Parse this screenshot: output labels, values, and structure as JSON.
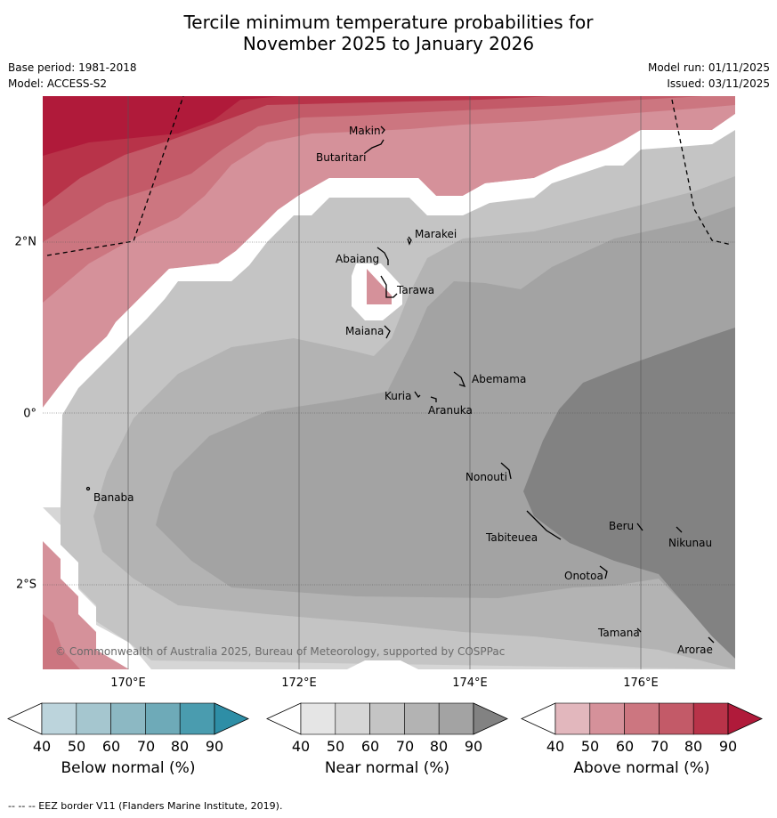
{
  "title": {
    "line1": "Tercile minimum temperature probabilities for",
    "line2": "November 2025 to January 2026"
  },
  "meta": {
    "base_period": "Base period: 1981-2018",
    "model": "Model: ACCESS-S2",
    "model_run": "Model run: 01/11/2025",
    "issued": "Issued: 03/11/2025"
  },
  "map": {
    "longitude_labels": [
      "170°E",
      "172°E",
      "174°E",
      "176°E"
    ],
    "latitude_labels": [
      "2°N",
      "0°",
      "2°S"
    ],
    "places": [
      "Makin",
      "Butaritari",
      "Marakei",
      "Abaiang",
      "Tarawa",
      "Maiana",
      "Abemama",
      "Kuria",
      "Aranuka",
      "Banaba",
      "Nonouti",
      "Tabiteuea",
      "Beru",
      "Nikunau",
      "Onotoa",
      "Tamana",
      "Arorae"
    ],
    "copyright": "© Commonwealth of Australia 2025, Bureau of Meteorology, supported by COSPPac"
  },
  "colorbars": [
    {
      "name": "below",
      "label": "Below normal (%)",
      "ticks": [
        "40",
        "50",
        "60",
        "70",
        "80",
        "90"
      ],
      "colors": [
        "#ffffff",
        "#bcd4dc",
        "#a5c6cf",
        "#8cb8c3",
        "#6eaab8",
        "#4a9caf",
        "#2e8ea6"
      ]
    },
    {
      "name": "near",
      "label": "Near normal (%)",
      "ticks": [
        "40",
        "50",
        "60",
        "70",
        "80",
        "90"
      ],
      "colors": [
        "#ffffff",
        "#e5e5e5",
        "#d6d6d6",
        "#c4c4c4",
        "#b3b3b3",
        "#a3a3a3",
        "#828282"
      ]
    },
    {
      "name": "above",
      "label": "Above normal (%)",
      "ticks": [
        "40",
        "50",
        "60",
        "70",
        "80",
        "90"
      ],
      "colors": [
        "#ffffff",
        "#e2b7bd",
        "#d5919a",
        "#cc7680",
        "#c35a68",
        "#b83349",
        "#b01a3a"
      ]
    }
  ],
  "footnote": "--  --  -- EEZ border V11 (Flanders Marine Institute, 2019)."
}
